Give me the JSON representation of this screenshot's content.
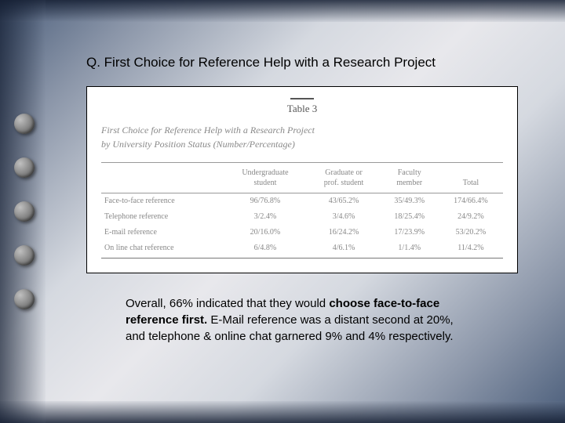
{
  "title": "Q. First Choice for Reference Help with a Research Project",
  "table": {
    "label": "Table 3",
    "subtitle_line1": "First Choice for Reference Help with a Research Project",
    "subtitle_line2": "by University Position Status (Number/Percentage)",
    "columns": [
      {
        "header": ""
      },
      {
        "header": "Undergraduate\nstudent"
      },
      {
        "header": "Graduate or\nprof. student"
      },
      {
        "header": "Faculty\nmember"
      },
      {
        "header": "Total"
      }
    ],
    "rows": [
      [
        "Face-to-face reference",
        "96/76.8%",
        "43/65.2%",
        "35/49.3%",
        "174/66.4%"
      ],
      [
        "Telephone reference",
        "3/2.4%",
        "3/4.6%",
        "18/25.4%",
        "24/9.2%"
      ],
      [
        "E-mail reference",
        "20/16.0%",
        "16/24.2%",
        "17/23.9%",
        "53/20.2%"
      ],
      [
        "On line chat reference",
        "6/4.8%",
        "4/6.1%",
        "1/1.4%",
        "11/4.2%"
      ]
    ]
  },
  "summary": {
    "part1": "Overall, 66% indicated that they would ",
    "bold": "choose face-to-face reference first.",
    "part2": "  E-Mail reference was a distant second at 20%, and telephone & online chat garnered 9% and 4% respectively."
  },
  "colors": {
    "text_primary": "#000000",
    "text_faded": "#888888",
    "border": "#999999",
    "background_box": "#ffffff"
  }
}
